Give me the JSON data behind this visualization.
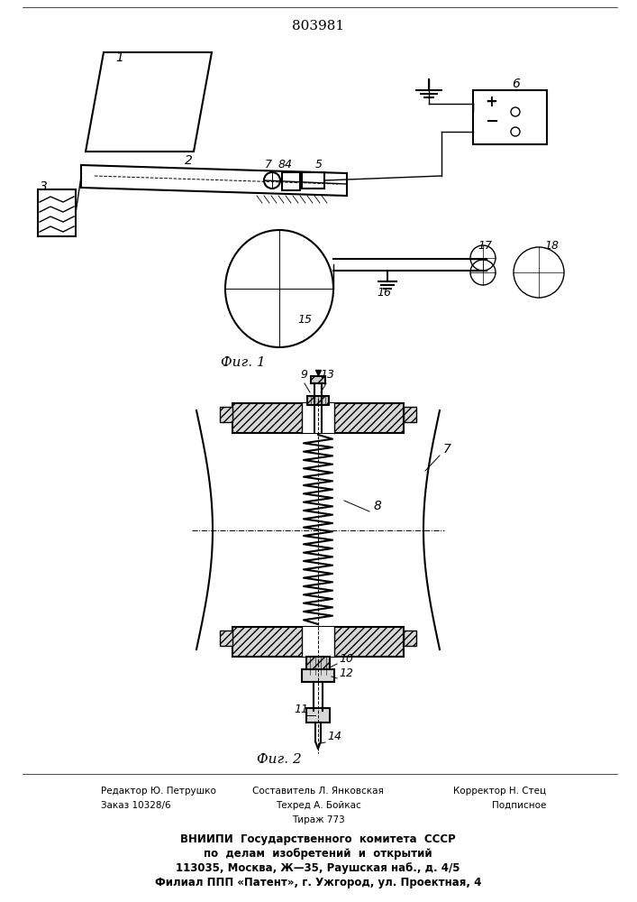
{
  "title": "803981",
  "fig1_label": "Фиг. 1",
  "fig2_label": "Фиг. 2",
  "bg_color": "#ffffff",
  "line_color": "#000000"
}
